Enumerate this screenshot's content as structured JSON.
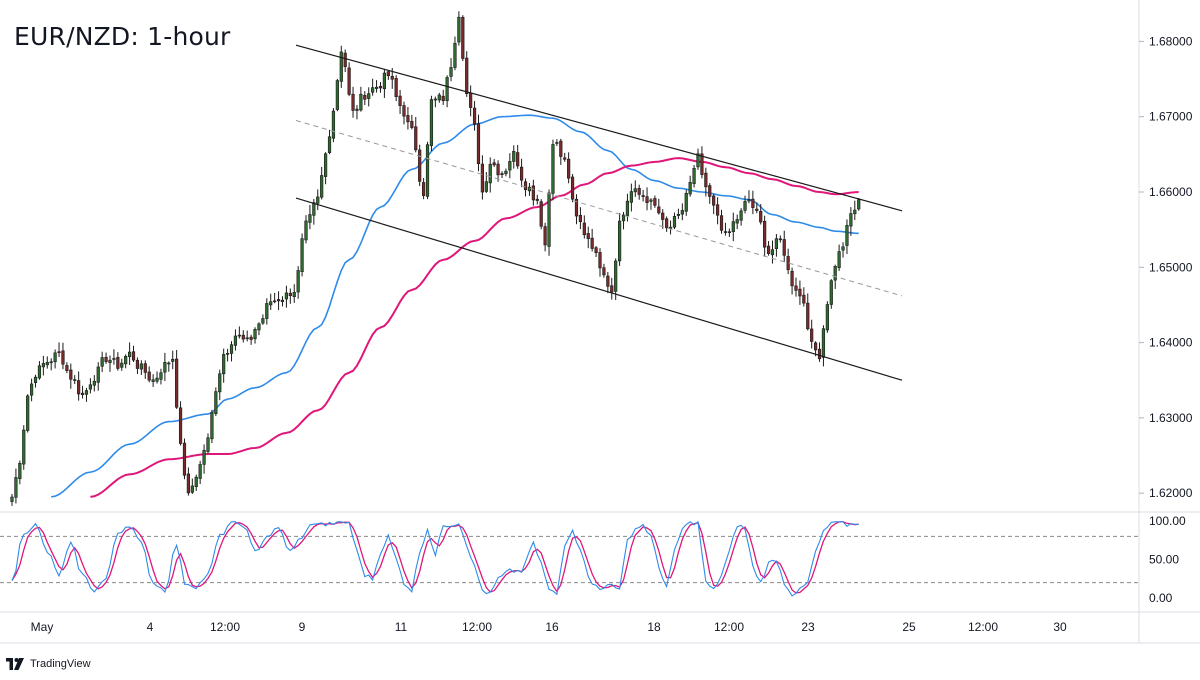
{
  "header": {
    "title": "EUR/NZD: 1-hour"
  },
  "brand": {
    "name": "TradingView"
  },
  "colors": {
    "candle_up": "#1b2a1b",
    "candle_up_fill": "#2e6b2e",
    "candle_down": "#1b1b1b",
    "candle_down_fill": "#7a2a2a",
    "ma_fast": "#2e8bea",
    "ma_slow": "#e0177a",
    "channel": "#1a1a1a",
    "midline": "#9a9a9a",
    "stoch_k": "#2e8bea",
    "stoch_d": "#e0177a"
  },
  "chart_data": {
    "type": "candlestick",
    "title": "EUR/NZD: 1-hour",
    "ylim": [
      1.6175,
      1.6855
    ],
    "y_ticks": [
      "1.68000",
      "1.67000",
      "1.66000",
      "1.65000",
      "1.64000",
      "1.63000",
      "1.62000"
    ],
    "x_ticks": [
      "May",
      "4",
      "12:00",
      "9",
      "11",
      "12:00",
      "16",
      "18",
      "12:00",
      "23",
      "25",
      "12:00",
      "30"
    ],
    "price_anchors": [
      [
        0,
        1.6195
      ],
      [
        2,
        1.6245
      ],
      [
        4,
        1.633
      ],
      [
        6,
        1.636
      ],
      [
        9,
        1.6375
      ],
      [
        12,
        1.6385
      ],
      [
        15,
        1.6355
      ],
      [
        18,
        1.633
      ],
      [
        21,
        1.6355
      ],
      [
        24,
        1.638
      ],
      [
        27,
        1.637
      ],
      [
        30,
        1.6385
      ],
      [
        33,
        1.6365
      ],
      [
        36,
        1.635
      ],
      [
        39,
        1.637
      ],
      [
        41,
        1.638
      ],
      [
        43,
        1.626
      ],
      [
        45,
        1.6195
      ],
      [
        47,
        1.6225
      ],
      [
        50,
        1.627
      ],
      [
        52,
        1.634
      ],
      [
        54,
        1.6385
      ],
      [
        57,
        1.641
      ],
      [
        60,
        1.64
      ],
      [
        63,
        1.6425
      ],
      [
        66,
        1.6455
      ],
      [
        69,
        1.646
      ],
      [
        72,
        1.647
      ],
      [
        75,
        1.6555
      ],
      [
        78,
        1.659
      ],
      [
        80,
        1.665
      ],
      [
        82,
        1.671
      ],
      [
        84,
        1.679
      ],
      [
        87,
        1.6705
      ],
      [
        90,
        1.673
      ],
      [
        93,
        1.674
      ],
      [
        96,
        1.6755
      ],
      [
        99,
        1.6715
      ],
      [
        102,
        1.668
      ],
      [
        105,
        1.66
      ],
      [
        107,
        1.672
      ],
      [
        110,
        1.6725
      ],
      [
        112,
        1.677
      ],
      [
        114,
        1.6838
      ],
      [
        116,
        1.673
      ],
      [
        118,
        1.6685
      ],
      [
        120,
        1.66
      ],
      [
        122,
        1.664
      ],
      [
        125,
        1.6625
      ],
      [
        128,
        1.665
      ],
      [
        131,
        1.661
      ],
      [
        134,
        1.659
      ],
      [
        136,
        1.653
      ],
      [
        138,
        1.667
      ],
      [
        141,
        1.664
      ],
      [
        144,
        1.6565
      ],
      [
        147,
        1.654
      ],
      [
        150,
        1.6505
      ],
      [
        153,
        1.647
      ],
      [
        155,
        1.656
      ],
      [
        158,
        1.66
      ],
      [
        161,
        1.6595
      ],
      [
        164,
        1.658
      ],
      [
        167,
        1.655
      ],
      [
        170,
        1.6565
      ],
      [
        173,
        1.661
      ],
      [
        175,
        1.6645
      ],
      [
        177,
        1.66
      ],
      [
        180,
        1.657
      ],
      [
        182,
        1.654
      ],
      [
        185,
        1.6565
      ],
      [
        188,
        1.659
      ],
      [
        190,
        1.657
      ],
      [
        193,
        1.652
      ],
      [
        196,
        1.6535
      ],
      [
        199,
        1.648
      ],
      [
        202,
        1.6455
      ],
      [
        204,
        1.6395
      ],
      [
        206,
        1.6385
      ],
      [
        208,
        1.6455
      ],
      [
        210,
        1.6505
      ],
      [
        212,
        1.653
      ],
      [
        214,
        1.657
      ],
      [
        216,
        1.6585
      ]
    ],
    "ma_fast_anchors": [
      [
        10,
        1.6195
      ],
      [
        20,
        1.6228
      ],
      [
        30,
        1.6265
      ],
      [
        40,
        1.6295
      ],
      [
        50,
        1.6305
      ],
      [
        55,
        1.6325
      ],
      [
        62,
        1.634
      ],
      [
        70,
        1.636
      ],
      [
        78,
        1.642
      ],
      [
        86,
        1.651
      ],
      [
        94,
        1.658
      ],
      [
        102,
        1.663
      ],
      [
        110,
        1.6665
      ],
      [
        118,
        1.669
      ],
      [
        125,
        1.67
      ],
      [
        132,
        1.6702
      ],
      [
        138,
        1.6698
      ],
      [
        145,
        1.668
      ],
      [
        152,
        1.6655
      ],
      [
        158,
        1.663
      ],
      [
        164,
        1.6615
      ],
      [
        170,
        1.6605
      ],
      [
        176,
        1.66
      ],
      [
        182,
        1.6595
      ],
      [
        188,
        1.659
      ],
      [
        194,
        1.657
      ],
      [
        200,
        1.656
      ],
      [
        206,
        1.6553
      ],
      [
        210,
        1.6548
      ],
      [
        216,
        1.6545
      ]
    ],
    "ma_slow_anchors": [
      [
        20,
        1.6195
      ],
      [
        30,
        1.6225
      ],
      [
        40,
        1.6245
      ],
      [
        50,
        1.6252
      ],
      [
        55,
        1.6252
      ],
      [
        62,
        1.626
      ],
      [
        70,
        1.628
      ],
      [
        78,
        1.631
      ],
      [
        86,
        1.636
      ],
      [
        94,
        1.642
      ],
      [
        102,
        1.647
      ],
      [
        110,
        1.651
      ],
      [
        118,
        1.6535
      ],
      [
        126,
        1.6565
      ],
      [
        134,
        1.658
      ],
      [
        140,
        1.6595
      ],
      [
        146,
        1.661
      ],
      [
        152,
        1.6625
      ],
      [
        158,
        1.6635
      ],
      [
        164,
        1.664
      ],
      [
        170,
        1.6645
      ],
      [
        176,
        1.664
      ],
      [
        182,
        1.6633
      ],
      [
        188,
        1.6625
      ],
      [
        194,
        1.6617
      ],
      [
        200,
        1.6608
      ],
      [
        206,
        1.66
      ],
      [
        210,
        1.6597
      ],
      [
        216,
        1.66
      ]
    ],
    "channel_upper": [
      [
        1.6795,
        1.6575
      ]
    ],
    "channel_lower": [
      [
        1.6592,
        1.635
      ]
    ],
    "channel_mid": [
      [
        1.6695,
        1.6462
      ]
    ],
    "stochastic": {
      "ticks": [
        "100.00",
        "50.00",
        "0.00"
      ],
      "levels": [
        80,
        20
      ],
      "k_anchors": [
        [
          0,
          20
        ],
        [
          3,
          85
        ],
        [
          6,
          95
        ],
        [
          9,
          60
        ],
        [
          12,
          30
        ],
        [
          15,
          70
        ],
        [
          18,
          30
        ],
        [
          21,
          10
        ],
        [
          24,
          25
        ],
        [
          27,
          85
        ],
        [
          30,
          95
        ],
        [
          33,
          70
        ],
        [
          36,
          20
        ],
        [
          39,
          10
        ],
        [
          42,
          70
        ],
        [
          44,
          20
        ],
        [
          47,
          15
        ],
        [
          50,
          30
        ],
        [
          53,
          80
        ],
        [
          56,
          98
        ],
        [
          59,
          95
        ],
        [
          62,
          60
        ],
        [
          65,
          80
        ],
        [
          68,
          90
        ],
        [
          71,
          60
        ],
        [
          74,
          80
        ],
        [
          77,
          98
        ],
        [
          80,
          95
        ],
        [
          83,
          98
        ],
        [
          86,
          98
        ],
        [
          88,
          60
        ],
        [
          90,
          30
        ],
        [
          92,
          25
        ],
        [
          94,
          60
        ],
        [
          96,
          80
        ],
        [
          98,
          50
        ],
        [
          100,
          20
        ],
        [
          102,
          10
        ],
        [
          104,
          60
        ],
        [
          106,
          90
        ],
        [
          108,
          55
        ],
        [
          110,
          95
        ],
        [
          112,
          95
        ],
        [
          114,
          98
        ],
        [
          116,
          70
        ],
        [
          118,
          40
        ],
        [
          120,
          10
        ],
        [
          122,
          5
        ],
        [
          124,
          25
        ],
        [
          127,
          35
        ],
        [
          130,
          35
        ],
        [
          133,
          70
        ],
        [
          135,
          45
        ],
        [
          137,
          10
        ],
        [
          139,
          5
        ],
        [
          141,
          70
        ],
        [
          143,
          90
        ],
        [
          145,
          60
        ],
        [
          148,
          20
        ],
        [
          150,
          10
        ],
        [
          153,
          20
        ],
        [
          155,
          10
        ],
        [
          157,
          75
        ],
        [
          159,
          90
        ],
        [
          161,
          95
        ],
        [
          163,
          80
        ],
        [
          165,
          40
        ],
        [
          167,
          15
        ],
        [
          169,
          60
        ],
        [
          171,
          90
        ],
        [
          173,
          98
        ],
        [
          175,
          98
        ],
        [
          177,
          20
        ],
        [
          179,
          10
        ],
        [
          181,
          30
        ],
        [
          183,
          60
        ],
        [
          185,
          95
        ],
        [
          187,
          90
        ],
        [
          189,
          40
        ],
        [
          191,
          20
        ],
        [
          193,
          45
        ],
        [
          195,
          50
        ],
        [
          197,
          20
        ],
        [
          199,
          5
        ],
        [
          201,
          10
        ],
        [
          203,
          20
        ],
        [
          205,
          60
        ],
        [
          207,
          85
        ],
        [
          209,
          98
        ],
        [
          211,
          98
        ],
        [
          213,
          95
        ],
        [
          216,
          98
        ]
      ]
    }
  }
}
